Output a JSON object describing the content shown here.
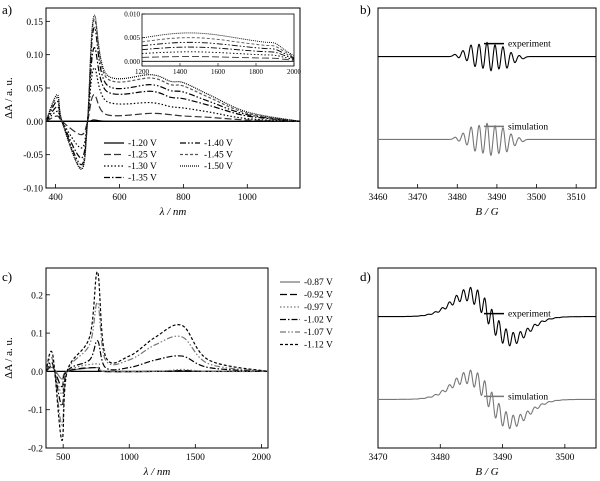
{
  "chart_data": [
    {
      "panel": "a)",
      "type": "line",
      "xlabel": "λ / nm",
      "ylabel": "ΔA / a. u.",
      "xlim": [
        370,
        1165
      ],
      "ylim": [
        -0.1,
        0.17
      ],
      "xticks": [
        400,
        600,
        800,
        1000
      ],
      "yticks": [
        -0.1,
        -0.05,
        0.0,
        0.05,
        0.1,
        0.15
      ],
      "yticklabels": [
        "-0.10",
        "-0.05",
        "0.00",
        "0.05",
        "0.10",
        "0.15"
      ],
      "legend": [
        "-1.20 V",
        "-1.25 V",
        "-1.30 V",
        "-1.35 V",
        "-1.40 V",
        "-1.45 V",
        "-1.50 V"
      ],
      "series": [
        {
          "name": "-1.20 V",
          "style": "solid",
          "color": "#000000",
          "x": [
            370,
            420,
            500,
            520,
            560,
            700,
            760,
            800,
            880,
            1000,
            1165
          ],
          "y": [
            0.0,
            0.0,
            0.0,
            0.002,
            0.0,
            0.0,
            0.0,
            0.0,
            0.0,
            0.0,
            0.0
          ]
        },
        {
          "name": "-1.25 V",
          "style": "dash",
          "color": "#333333",
          "x": [
            370,
            405,
            420,
            480,
            500,
            520,
            560,
            700,
            760,
            800,
            880,
            1000,
            1165
          ],
          "y": [
            0.0,
            0.008,
            0.0,
            -0.02,
            0.0,
            0.04,
            0.01,
            0.012,
            0.01,
            0.008,
            0.006,
            0.002,
            0.0
          ]
        },
        {
          "name": "-1.30 V",
          "style": "dot",
          "color": "#000000",
          "x": [
            370,
            405,
            420,
            480,
            500,
            520,
            560,
            700,
            760,
            800,
            880,
            1000,
            1165
          ],
          "y": [
            0.0,
            0.015,
            0.0,
            -0.04,
            0.0,
            0.08,
            0.03,
            0.028,
            0.022,
            0.02,
            0.014,
            0.004,
            0.0
          ]
        },
        {
          "name": "-1.35 V",
          "style": "dashdot",
          "color": "#000000",
          "x": [
            370,
            405,
            420,
            480,
            500,
            520,
            560,
            700,
            760,
            800,
            880,
            1000,
            1165
          ],
          "y": [
            0.0,
            0.022,
            0.0,
            -0.055,
            0.0,
            0.11,
            0.045,
            0.045,
            0.036,
            0.034,
            0.024,
            0.008,
            0.0
          ]
        },
        {
          "name": "-1.40 V",
          "style": "dashdotdot",
          "color": "#000000",
          "x": [
            370,
            405,
            420,
            480,
            500,
            520,
            560,
            700,
            760,
            800,
            880,
            1000,
            1165
          ],
          "y": [
            0.0,
            0.03,
            0.0,
            -0.065,
            0.0,
            0.14,
            0.055,
            0.055,
            0.046,
            0.044,
            0.03,
            0.01,
            0.0
          ]
        },
        {
          "name": "-1.45 V",
          "style": "shortdash",
          "color": "#555555",
          "x": [
            370,
            405,
            420,
            480,
            500,
            520,
            560,
            700,
            760,
            800,
            880,
            1000,
            1165
          ],
          "y": [
            0.0,
            0.036,
            0.0,
            -0.07,
            0.0,
            0.152,
            0.065,
            0.065,
            0.055,
            0.053,
            0.036,
            0.012,
            0.0
          ]
        },
        {
          "name": "-1.50 V",
          "style": "densedot",
          "color": "#000000",
          "x": [
            370,
            405,
            420,
            480,
            500,
            520,
            560,
            700,
            760,
            800,
            880,
            1000,
            1165
          ],
          "y": [
            0.0,
            0.04,
            0.0,
            -0.072,
            0.0,
            0.158,
            0.07,
            0.07,
            0.06,
            0.058,
            0.04,
            0.014,
            0.0
          ]
        }
      ],
      "inset": {
        "xlim": [
          1200,
          2000
        ],
        "ylim": [
          -0.001,
          0.01
        ],
        "xticks": [
          1200,
          1400,
          1600,
          1800,
          2000
        ],
        "yticks": [
          0.0,
          0.005,
          0.01
        ],
        "yticklabels": [
          "0.000",
          "0.005",
          "0.010"
        ]
      }
    },
    {
      "panel": "b)",
      "type": "line",
      "xlabel": "B / G",
      "xlim": [
        3460,
        3515
      ],
      "xticks": [
        3460,
        3470,
        3480,
        3490,
        3500,
        3510
      ],
      "series": [
        {
          "name": "experiment",
          "color": "#000000",
          "offset": 1.0
        },
        {
          "name": "simulation",
          "color": "#777777",
          "offset": -1.0
        }
      ],
      "center": 3488,
      "lines": [
        -8,
        -6,
        -4,
        -2,
        0,
        2,
        4,
        6,
        8
      ]
    },
    {
      "panel": "c)",
      "type": "line",
      "xlabel": "λ / nm",
      "ylabel": "ΔA / a. u.",
      "xlim": [
        370,
        2050
      ],
      "ylim": [
        -0.2,
        0.27
      ],
      "xticks": [
        500,
        1000,
        1500,
        2000
      ],
      "yticks": [
        -0.2,
        -0.1,
        0.0,
        0.1,
        0.2
      ],
      "yticklabels": [
        "-0.2",
        "-0.1",
        "0.0",
        "0.1",
        "0.2"
      ],
      "legend": [
        "-0.87 V",
        "-0.92 V",
        "-0.97 V",
        "-1.02 V",
        "-1.07 V",
        "-1.12 V"
      ],
      "series": [
        {
          "name": "-0.87 V",
          "style": "solid",
          "color": "#777777",
          "x": [
            370,
            420,
            490,
            530,
            760,
            800,
            1200,
            1400,
            1600,
            2050
          ],
          "y": [
            0.0,
            0.01,
            -0.02,
            0.0,
            0.01,
            0.0,
            0.0,
            0.002,
            0.0,
            0.0
          ]
        },
        {
          "name": "-0.92 V",
          "style": "dash",
          "color": "#000000",
          "x": [
            370,
            420,
            490,
            530,
            760,
            800,
            1200,
            1400,
            1600,
            2050
          ],
          "y": [
            0.0,
            0.012,
            -0.04,
            0.0,
            0.01,
            0.0,
            0.0,
            0.002,
            0.0,
            0.0
          ]
        },
        {
          "name": "-0.97 V",
          "style": "dot",
          "color": "#777777",
          "x": [
            370,
            420,
            490,
            530,
            760,
            800,
            1200,
            1400,
            1600,
            2050
          ],
          "y": [
            0.0,
            0.015,
            -0.06,
            0.0,
            0.02,
            0.002,
            0.0,
            0.005,
            0.0,
            0.0
          ]
        },
        {
          "name": "-1.02 V",
          "style": "dashdot",
          "color": "#000000",
          "x": [
            370,
            420,
            490,
            530,
            700,
            760,
            820,
            1000,
            1200,
            1400,
            1600,
            2050
          ],
          "y": [
            0.0,
            0.02,
            -0.09,
            0.0,
            0.03,
            0.08,
            0.01,
            0.01,
            0.03,
            0.04,
            0.01,
            0.0
          ]
        },
        {
          "name": "-1.07 V",
          "style": "dashdotdot",
          "color": "#777777",
          "x": [
            370,
            420,
            490,
            530,
            700,
            760,
            820,
            1000,
            1200,
            1400,
            1600,
            2050
          ],
          "y": [
            0.0,
            0.03,
            -0.14,
            0.0,
            0.07,
            0.18,
            0.03,
            0.03,
            0.07,
            0.09,
            0.02,
            0.0
          ]
        },
        {
          "name": "-1.12 V",
          "style": "shortdash",
          "color": "#000000",
          "x": [
            370,
            420,
            490,
            530,
            700,
            760,
            820,
            1000,
            1200,
            1400,
            1600,
            2050
          ],
          "y": [
            0.0,
            0.045,
            -0.18,
            0.0,
            0.09,
            0.26,
            0.04,
            0.04,
            0.09,
            0.12,
            0.03,
            0.0
          ]
        }
      ]
    },
    {
      "panel": "d)",
      "type": "line",
      "xlabel": "B / G",
      "xlim": [
        3470,
        3505
      ],
      "xticks": [
        3470,
        3480,
        3490,
        3500
      ],
      "series": [
        {
          "name": "experiment",
          "color": "#000000",
          "offset": 1.0
        },
        {
          "name": "simulation",
          "color": "#777777",
          "offset": -1.0
        }
      ],
      "center": 3488
    }
  ]
}
